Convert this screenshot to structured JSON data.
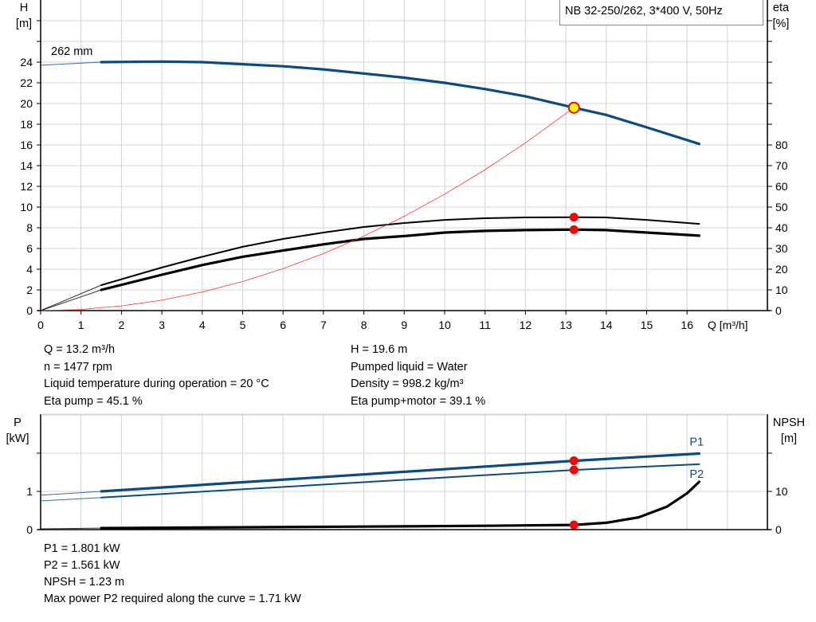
{
  "chart_data": [
    {
      "type": "line",
      "title": "NB 32-250/262, 3*400 V, 50Hz",
      "xlabel": "Q [m³/h]",
      "ylabel_left": [
        "H",
        "[m]"
      ],
      "ylabel_right": [
        "eta",
        "[%]"
      ],
      "xlim": [
        0,
        18
      ],
      "ylim_left": [
        0,
        30
      ],
      "ylim_right": [
        0,
        115.4
      ],
      "xticks": [
        0,
        1,
        2,
        3,
        4,
        5,
        6,
        7,
        8,
        9,
        10,
        11,
        12,
        13,
        14,
        15,
        16
      ],
      "yticks_left": [
        0,
        2,
        4,
        6,
        8,
        10,
        12,
        14,
        16,
        18,
        20,
        22,
        24
      ],
      "yticks_right": [
        0,
        10,
        20,
        30,
        40,
        50,
        60,
        70,
        80
      ],
      "grid": true,
      "curve_label": "262 mm",
      "series": [
        {
          "key": "head",
          "axis": "left",
          "color": "#0b4a82",
          "x": [
            0,
            1.5,
            3,
            4,
            5,
            6,
            7,
            8,
            9,
            10,
            11,
            12,
            13.2,
            14,
            15,
            16.3
          ],
          "y": [
            23.7,
            24.0,
            24.05,
            24.0,
            23.8,
            23.6,
            23.3,
            22.9,
            22.5,
            22.0,
            21.4,
            20.7,
            19.6,
            18.9,
            17.7,
            16.1
          ]
        },
        {
          "key": "eta_pump",
          "axis": "right",
          "color": "#000000",
          "x": [
            0,
            1.5,
            3,
            4,
            5,
            6,
            7,
            8,
            9,
            10,
            11,
            12,
            13.2,
            14,
            15,
            16.3
          ],
          "y": [
            0,
            12.3,
            20.8,
            26,
            30.8,
            34.6,
            37.7,
            40.4,
            42.3,
            43.8,
            44.6,
            45,
            45.1,
            45,
            43.8,
            41.9
          ]
        },
        {
          "key": "eta_pump_motor",
          "axis": "right",
          "color": "#000000",
          "x": [
            0,
            1.5,
            3,
            4,
            5,
            6,
            7,
            8,
            9,
            10,
            11,
            12,
            13.2,
            14,
            15,
            16.3
          ],
          "y": [
            0,
            10,
            17.3,
            22,
            26,
            29,
            32,
            34.6,
            36,
            37.7,
            38.5,
            38.9,
            39.1,
            38.9,
            37.7,
            36.2
          ]
        },
        {
          "key": "system",
          "axis": "left",
          "color": "#ff3333",
          "x": [
            0,
            1,
            2,
            3,
            4,
            5,
            6,
            7,
            8,
            9,
            10,
            11,
            12,
            13.2
          ],
          "y": [
            0,
            0.11,
            0.45,
            1.01,
            1.8,
            2.81,
            4.05,
            5.51,
            7.2,
            9.11,
            11.25,
            13.61,
            16.2,
            19.6
          ]
        }
      ],
      "duty_point": {
        "x": 13.2,
        "y": 19.6,
        "color": "#ffff00"
      },
      "markers": [
        {
          "x": 13.2,
          "eta": 45.1
        },
        {
          "x": 13.2,
          "eta": 39.1
        }
      ]
    },
    {
      "type": "line",
      "ylabel_left": [
        "P",
        "[kW]"
      ],
      "ylabel_right": [
        "NPSH",
        "[m]"
      ],
      "xlim": [
        0,
        18
      ],
      "ylim_left": [
        0,
        3
      ],
      "ylim_right": [
        0,
        30
      ],
      "yticks_left": [
        0,
        1
      ],
      "yticks_right": [
        0,
        10
      ],
      "grid": true,
      "series": [
        {
          "key": "P1",
          "name": "P1",
          "axis": "left",
          "color": "#0b4a82",
          "x": [
            0,
            1.5,
            13.2,
            16.3
          ],
          "y": [
            0.9,
            1.0,
            1.801,
            1.99
          ]
        },
        {
          "key": "P2",
          "name": "P2",
          "axis": "left",
          "color": "#0b4a82",
          "x": [
            0,
            1.5,
            13.2,
            16.3
          ],
          "y": [
            0.75,
            0.84,
            1.561,
            1.71
          ]
        },
        {
          "key": "npsh",
          "axis": "right",
          "color": "#000000",
          "x": [
            0,
            1.5,
            4,
            8,
            11,
            13.2,
            14,
            14.8,
            15.5,
            16,
            16.3
          ],
          "y": [
            0.2,
            0.4,
            0.55,
            0.8,
            1.0,
            1.23,
            1.8,
            3.2,
            6,
            9.5,
            12.5
          ]
        }
      ],
      "markers": [
        {
          "x": 13.2,
          "P": 1.801
        },
        {
          "x": 13.2,
          "P": 1.561
        },
        {
          "x": 13.2,
          "npsh": 1.23
        }
      ]
    }
  ],
  "info_top_left": [
    "Q = 13.2 m³/h",
    "n = 1477 rpm",
    "Liquid temperature during operation = 20 °C",
    "Eta pump = 45.1 %"
  ],
  "info_top_right": [
    "H = 19.6 m",
    "Pumped liquid = Water",
    "Density = 998.2 kg/m³",
    "Eta pump+motor = 39.1 %"
  ],
  "info_bottom": [
    "P1 = 1.801 kW",
    "P2 = 1.561 kW",
    "NPSH = 1.23 m",
    "Max power P2 required along the curve = 1.71 kW"
  ]
}
